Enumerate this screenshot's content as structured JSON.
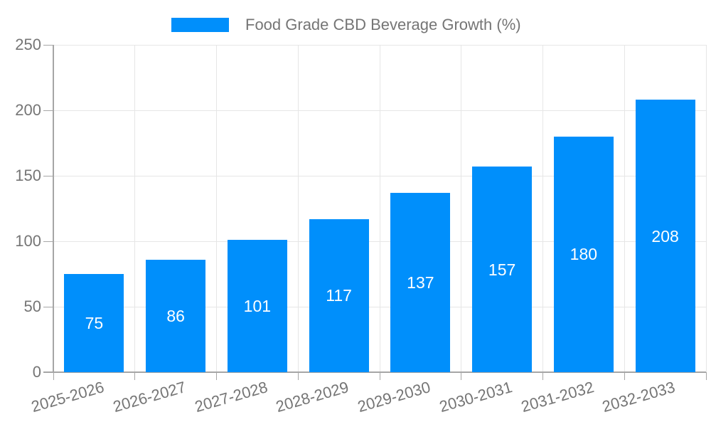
{
  "legend": {
    "label": "Food Grade CBD Beverage Growth (%)"
  },
  "chart_data": {
    "type": "bar",
    "title": "",
    "series_name": "Food Grade CBD Beverage Growth (%)",
    "categories": [
      "2025-2026",
      "2026-2027",
      "2027-2028",
      "2028-2029",
      "2029-2030",
      "2030-2031",
      "2031-2032",
      "2032-2033"
    ],
    "values": [
      75,
      86,
      101,
      117,
      137,
      157,
      180,
      208
    ],
    "xlabel": "",
    "ylabel": "",
    "ylim": [
      0,
      250
    ],
    "yticks": [
      0,
      50,
      100,
      150,
      200,
      250
    ],
    "grid": true,
    "legend_position": "top",
    "x_label_rotation": -16,
    "bar_color": "#008FFB",
    "bar_label_color": "#ffffff",
    "axis_text_color": "#757575",
    "grid_color": "#e6e6e6",
    "axis_line_color": "#a6a6a6"
  }
}
